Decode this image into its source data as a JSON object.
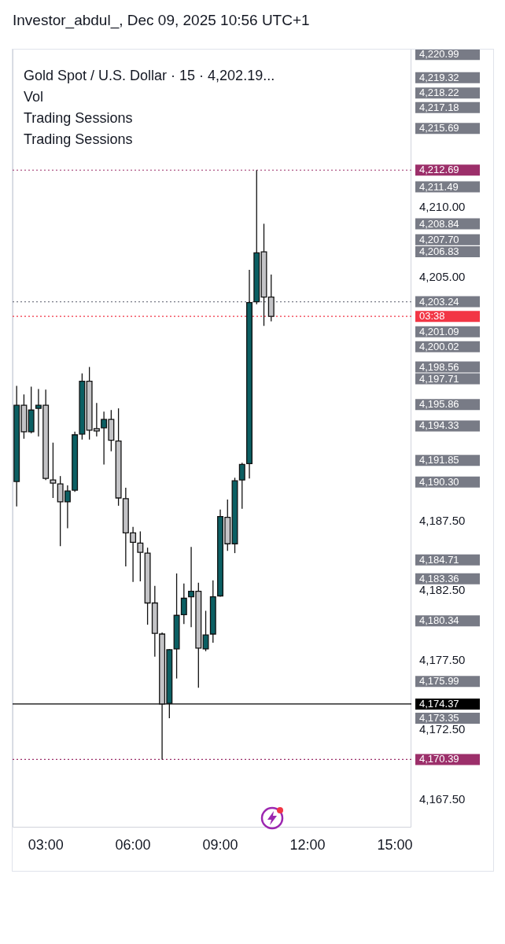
{
  "chart_data": {
    "type": "candlestick",
    "title": "Gold Spot / U.S. Dollar · 15 · 4,202.19...",
    "subtitle": "Investor_abdul_, Dec 09, 2025 10:56 UTC+1",
    "x": [
      2,
      2.25,
      2.5,
      2.75,
      3,
      3.25,
      3.5,
      3.75,
      4,
      4.25,
      4.5,
      4.75,
      5,
      5.25,
      5.5,
      5.75,
      6,
      6.25,
      6.5,
      6.75,
      7,
      7.25,
      7.5,
      7.75,
      8,
      8.25,
      8.5,
      8.75,
      9,
      9.25,
      9.5,
      9.75,
      10,
      10.25,
      10.5,
      10.75
    ],
    "ohlc": [
      [
        4190.34,
        4197.21,
        4188.55,
        4195.81
      ],
      [
        4195.81,
        4196.59,
        4193.41,
        4193.91
      ],
      [
        4193.91,
        4197.15,
        4193.8,
        4195.47
      ],
      [
        4195.59,
        4196.98,
        4193.58,
        4195.81
      ],
      [
        4195.81,
        4196.93,
        4190.45,
        4190.56
      ],
      [
        4190.45,
        4193.13,
        4189.16,
        4190.22
      ],
      [
        4190.17,
        4190.73,
        4185.7,
        4188.88
      ],
      [
        4188.88,
        4190.06,
        4186.98,
        4189.66
      ],
      [
        4189.72,
        4193.91,
        4189.6,
        4193.69
      ],
      [
        4193.74,
        4198.1,
        4193.35,
        4197.54
      ],
      [
        4197.54,
        4198.56,
        4193.35,
        4194.02
      ],
      [
        4194.13,
        4195.98,
        4193.58,
        4193.97
      ],
      [
        4194.19,
        4195.36,
        4191.56,
        4194.8
      ],
      [
        4194.8,
        4195.47,
        4192.51,
        4193.3
      ],
      [
        4193.24,
        4195.59,
        4188.6,
        4189.16
      ],
      [
        4189.11,
        4189.89,
        4184.25,
        4186.65
      ],
      [
        4186.65,
        4187.09,
        4183.13,
        4185.98
      ],
      [
        4185.92,
        4186.76,
        4183.18,
        4185.25
      ],
      [
        4185.2,
        4185.59,
        4180.06,
        4181.62
      ],
      [
        4181.62,
        4182.85,
        4177.77,
        4179.44
      ],
      [
        4179.39,
        4179.5,
        4170.39,
        4174.37
      ],
      [
        4174.41,
        4178.32,
        4173.35,
        4178.27
      ],
      [
        4178.32,
        4183.74,
        4176.2,
        4180.73
      ],
      [
        4180.78,
        4183.02,
        4180.11,
        4181.96
      ],
      [
        4182.07,
        4185.64,
        4179.89,
        4182.46
      ],
      [
        4182.46,
        4183.07,
        4175.53,
        4178.38
      ],
      [
        4178.32,
        4181.06,
        4178.16,
        4179.33
      ],
      [
        4179.39,
        4183.24,
        4178.77,
        4182.07
      ],
      [
        4182.13,
        4188.32,
        4182.07,
        4187.82
      ],
      [
        4187.77,
        4189.05,
        4185.36,
        4185.87
      ],
      [
        4185.87,
        4190.61,
        4185.2,
        4190.39
      ],
      [
        4190.45,
        4191.68,
        4188.38,
        4191.56
      ],
      [
        4191.62,
        4205.53,
        4190.56,
        4203.18
      ],
      [
        4203.24,
        4212.69,
        4203.07,
        4206.76
      ],
      [
        4206.83,
        4208.84,
        4201.51,
        4203.58
      ],
      [
        4203.58,
        4205.2,
        4201.84,
        4202.19
      ]
    ],
    "colors": [
      "#0b5f63",
      "#c3c3c6",
      "#0b5f63",
      "#0b5f63",
      "#c3c3c6",
      "#c3c3c6",
      "#c3c3c6",
      "#0b5f63",
      "#0b5f63",
      "#0b5f63",
      "#c3c3c6",
      "#c3c3c6",
      "#0b5f63",
      "#c3c3c6",
      "#c3c3c6",
      "#c3c3c6",
      "#c3c3c6",
      "#c3c3c6",
      "#c3c3c6",
      "#c3c3c6",
      "#c3c3c6",
      "#0b5f63",
      "#0b5f63",
      "#0b5f63",
      "#0b5f63",
      "#c3c3c6",
      "#0b5f63",
      "#0b5f63",
      "#0b5f63",
      "#c3c3c6",
      "#0b5f63",
      "#0b5f63",
      "#0b5f63",
      "#0b5f63",
      "#c3c3c6",
      "#c3c3c6"
    ],
    "xlim": [
      1.86,
      15.57
    ],
    "xticks": [
      {
        "value": 3,
        "label": "03:00"
      },
      {
        "value": 6,
        "label": "06:00"
      },
      {
        "value": 9,
        "label": "09:00"
      },
      {
        "value": 12,
        "label": "12:00"
      },
      {
        "value": 15,
        "label": "15:00"
      }
    ],
    "ylim": [
      4165.5,
      4221.4
    ],
    "yticks": [
      {
        "value": 4167.5,
        "label": "4,167.50"
      },
      {
        "value": 4172.5,
        "label": "4,172.50"
      },
      {
        "value": 4177.5,
        "label": "4,177.50"
      },
      {
        "value": 4182.5,
        "label": "4,182.50"
      },
      {
        "value": 4187.5,
        "label": "4,187.50"
      },
      {
        "value": 4205,
        "label": "4,205.00"
      },
      {
        "value": 4210,
        "label": "4,210.00"
      },
      {
        "value": 4173.35,
        "label": "4,173.35"
      },
      {
        "value": 4175.99,
        "label": "4,175.99"
      },
      {
        "value": 4180.34,
        "label": "4,180.34"
      },
      {
        "value": 4183.36,
        "label": "4,183.36"
      },
      {
        "value": 4184.71,
        "label": "4,184.71"
      },
      {
        "value": 4190.3,
        "label": "4,190.30"
      },
      {
        "value": 4191.85,
        "label": "4,191.85"
      },
      {
        "value": 4194.33,
        "label": "4,194.33"
      },
      {
        "value": 4195.86,
        "label": "4,195.86"
      },
      {
        "value": 4197.71,
        "label": "4,197.71"
      },
      {
        "value": 4198.56,
        "label": "4,198.56"
      },
      {
        "value": 4200.02,
        "label": "4,200.02"
      },
      {
        "value": 4201.09,
        "label": "4,201.09"
      },
      {
        "value": 4206.83,
        "label": "4,206.83"
      },
      {
        "value": 4207.7,
        "label": "4,207.70"
      },
      {
        "value": 4208.84,
        "label": "4,208.84"
      },
      {
        "value": 4211.49,
        "label": "4,211.49"
      },
      {
        "value": 4215.69,
        "label": "4,215.69"
      },
      {
        "value": 4217.18,
        "label": "4,217.18"
      },
      {
        "value": 4218.22,
        "label": "4,218.22"
      },
      {
        "value": 4219.32,
        "label": "4,219.32"
      },
      {
        "value": 4220.99,
        "label": "4,220.99"
      }
    ],
    "ref_lines": [
      {
        "axis": "y",
        "value": 4212.69,
        "label": "4,212.69",
        "color": "#9c2f6a",
        "line_style": "dotted"
      },
      {
        "axis": "y",
        "value": 4203.24,
        "label": "4,203.24",
        "color": "#787b86",
        "line_style": "dotted"
      },
      {
        "axis": "y",
        "value": 4202.19,
        "color": "#f23645",
        "line_style": "dotted"
      },
      {
        "axis": "y",
        "value": 4174.37,
        "label": "4,174.37",
        "color": "#000000",
        "line_style": "solid"
      },
      {
        "axis": "y",
        "value": 4170.39,
        "label": "4,170.39",
        "color": "#9c2f6a",
        "line_style": "dotted"
      }
    ],
    "annotations": [
      "Vol",
      "Trading Sessions",
      "Trading Sessions",
      "03:38"
    ]
  }
}
